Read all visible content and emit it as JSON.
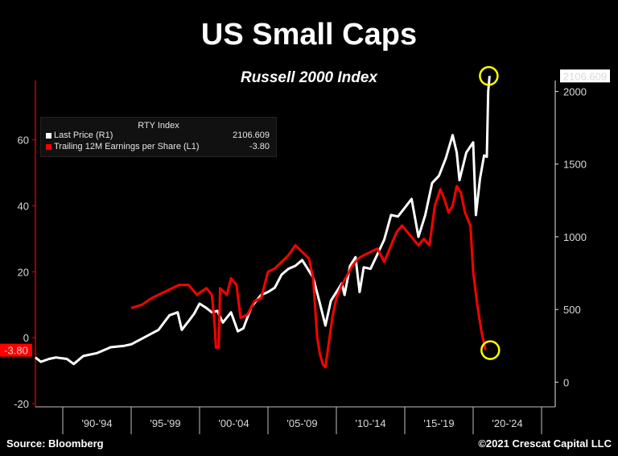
{
  "header": {
    "title": "US Small Caps",
    "subtitle": "Russell 2000 Index"
  },
  "footer": {
    "source": "Source: Bloomberg",
    "copyright": "©2021 Crescat Capital LLC"
  },
  "colors": {
    "background": "#000000",
    "price_line": "#ffffff",
    "eps_line": "#ff0000",
    "highlight_circle": "#ffff00"
  },
  "chart_data": {
    "type": "line",
    "legend": {
      "title": "RTY Index",
      "entries": [
        {
          "label": "Last Price  (R1)",
          "value": "2106.609",
          "color": "#ffffff"
        },
        {
          "label": "Trailing 12M Earnings per Share  (L1)",
          "value": "-3.80",
          "color": "#ff0000"
        }
      ],
      "placement": "top-left"
    },
    "x_tick_labels": [
      "'90-'94",
      "'95-'99",
      "'00-'04",
      "'05-'09",
      "'10-'14",
      "'15-'19",
      "'20-'24"
    ],
    "x_range": [
      1988,
      2026
    ],
    "left_axis": {
      "range": [
        -21,
        78
      ],
      "ticks": [
        -20,
        0,
        20,
        40,
        60
      ]
    },
    "right_axis": {
      "range": [
        -170,
        2075
      ],
      "ticks": [
        0,
        500,
        1000,
        1500,
        2000
      ]
    },
    "last_value_labels": {
      "left": "-3.80",
      "right": "2106.609"
    },
    "series": [
      {
        "name": "Last Price  (R1)",
        "axis": "right",
        "color": "#ffffff",
        "points": [
          [
            1988.0,
            170
          ],
          [
            1988.4,
            140
          ],
          [
            1989.0,
            160
          ],
          [
            1989.5,
            170
          ],
          [
            1990.3,
            160
          ],
          [
            1990.8,
            125
          ],
          [
            1991.5,
            180
          ],
          [
            1992.5,
            200
          ],
          [
            1993.5,
            240
          ],
          [
            1994.5,
            250
          ],
          [
            1995.0,
            260
          ],
          [
            1996.0,
            310
          ],
          [
            1997.0,
            360
          ],
          [
            1997.8,
            460
          ],
          [
            1998.4,
            480
          ],
          [
            1998.7,
            360
          ],
          [
            1999.2,
            420
          ],
          [
            1999.6,
            470
          ],
          [
            2000.0,
            540
          ],
          [
            2000.5,
            510
          ],
          [
            2000.9,
            480
          ],
          [
            2001.3,
            490
          ],
          [
            2001.7,
            410
          ],
          [
            2002.3,
            480
          ],
          [
            2002.8,
            350
          ],
          [
            2003.2,
            370
          ],
          [
            2003.8,
            520
          ],
          [
            2004.5,
            600
          ],
          [
            2005.0,
            620
          ],
          [
            2005.5,
            650
          ],
          [
            2006.0,
            740
          ],
          [
            2006.5,
            780
          ],
          [
            2007.0,
            800
          ],
          [
            2007.5,
            840
          ],
          [
            2007.9,
            780
          ],
          [
            2008.3,
            720
          ],
          [
            2008.8,
            540
          ],
          [
            2009.2,
            390
          ],
          [
            2009.6,
            560
          ],
          [
            2010.0,
            620
          ],
          [
            2010.4,
            680
          ],
          [
            2010.6,
            600
          ],
          [
            2011.0,
            800
          ],
          [
            2011.4,
            860
          ],
          [
            2011.7,
            620
          ],
          [
            2012.0,
            790
          ],
          [
            2012.5,
            780
          ],
          [
            2013.0,
            880
          ],
          [
            2013.5,
            980
          ],
          [
            2014.0,
            1150
          ],
          [
            2014.5,
            1140
          ],
          [
            2015.0,
            1200
          ],
          [
            2015.5,
            1260
          ],
          [
            2016.0,
            1000
          ],
          [
            2016.5,
            1150
          ],
          [
            2017.0,
            1370
          ],
          [
            2017.5,
            1420
          ],
          [
            2018.0,
            1540
          ],
          [
            2018.5,
            1700
          ],
          [
            2018.8,
            1580
          ],
          [
            2019.0,
            1390
          ],
          [
            2019.5,
            1580
          ],
          [
            2020.0,
            1650
          ],
          [
            2020.2,
            1150
          ],
          [
            2020.5,
            1400
          ],
          [
            2020.8,
            1560
          ],
          [
            2021.0,
            1550
          ],
          [
            2021.1,
            2000
          ],
          [
            2021.2,
            2106.609
          ]
        ]
      },
      {
        "name": "Trailing 12M Earnings per Share  (L1)",
        "axis": "left",
        "color": "#ff0000",
        "points": [
          [
            1995.0,
            9
          ],
          [
            1995.8,
            10
          ],
          [
            1996.5,
            12
          ],
          [
            1997.5,
            14
          ],
          [
            1998.5,
            16
          ],
          [
            1999.2,
            16
          ],
          [
            1999.8,
            13
          ],
          [
            2000.5,
            15
          ],
          [
            2000.9,
            13
          ],
          [
            2001.1,
            4
          ],
          [
            2001.2,
            -3
          ],
          [
            2001.4,
            -3
          ],
          [
            2001.5,
            15
          ],
          [
            2002.0,
            13
          ],
          [
            2002.3,
            18
          ],
          [
            2002.7,
            16
          ],
          [
            2003.0,
            6
          ],
          [
            2003.5,
            7
          ],
          [
            2004.0,
            11
          ],
          [
            2004.5,
            12
          ],
          [
            2005.0,
            20
          ],
          [
            2005.5,
            21
          ],
          [
            2006.0,
            23
          ],
          [
            2006.5,
            25
          ],
          [
            2007.0,
            28
          ],
          [
            2007.5,
            26
          ],
          [
            2008.0,
            24
          ],
          [
            2008.3,
            18
          ],
          [
            2008.6,
            0
          ],
          [
            2008.8,
            -5
          ],
          [
            2009.0,
            -8
          ],
          [
            2009.2,
            -9
          ],
          [
            2009.4,
            -3
          ],
          [
            2009.7,
            6
          ],
          [
            2010.0,
            12
          ],
          [
            2010.4,
            16
          ],
          [
            2010.8,
            19
          ],
          [
            2011.2,
            22
          ],
          [
            2011.6,
            24
          ],
          [
            2012.0,
            25
          ],
          [
            2012.5,
            26
          ],
          [
            2013.0,
            27
          ],
          [
            2013.5,
            23
          ],
          [
            2014.0,
            28
          ],
          [
            2014.4,
            32
          ],
          [
            2014.8,
            34
          ],
          [
            2015.2,
            32
          ],
          [
            2015.6,
            30
          ],
          [
            2016.0,
            28
          ],
          [
            2016.4,
            30
          ],
          [
            2016.8,
            28
          ],
          [
            2017.2,
            40
          ],
          [
            2017.6,
            45
          ],
          [
            2017.9,
            42
          ],
          [
            2018.2,
            38
          ],
          [
            2018.5,
            40
          ],
          [
            2018.8,
            46
          ],
          [
            2019.1,
            44
          ],
          [
            2019.4,
            38
          ],
          [
            2019.8,
            34
          ],
          [
            2020.0,
            20
          ],
          [
            2020.3,
            10
          ],
          [
            2020.6,
            2
          ],
          [
            2020.9,
            -3.8
          ]
        ]
      }
    ]
  }
}
